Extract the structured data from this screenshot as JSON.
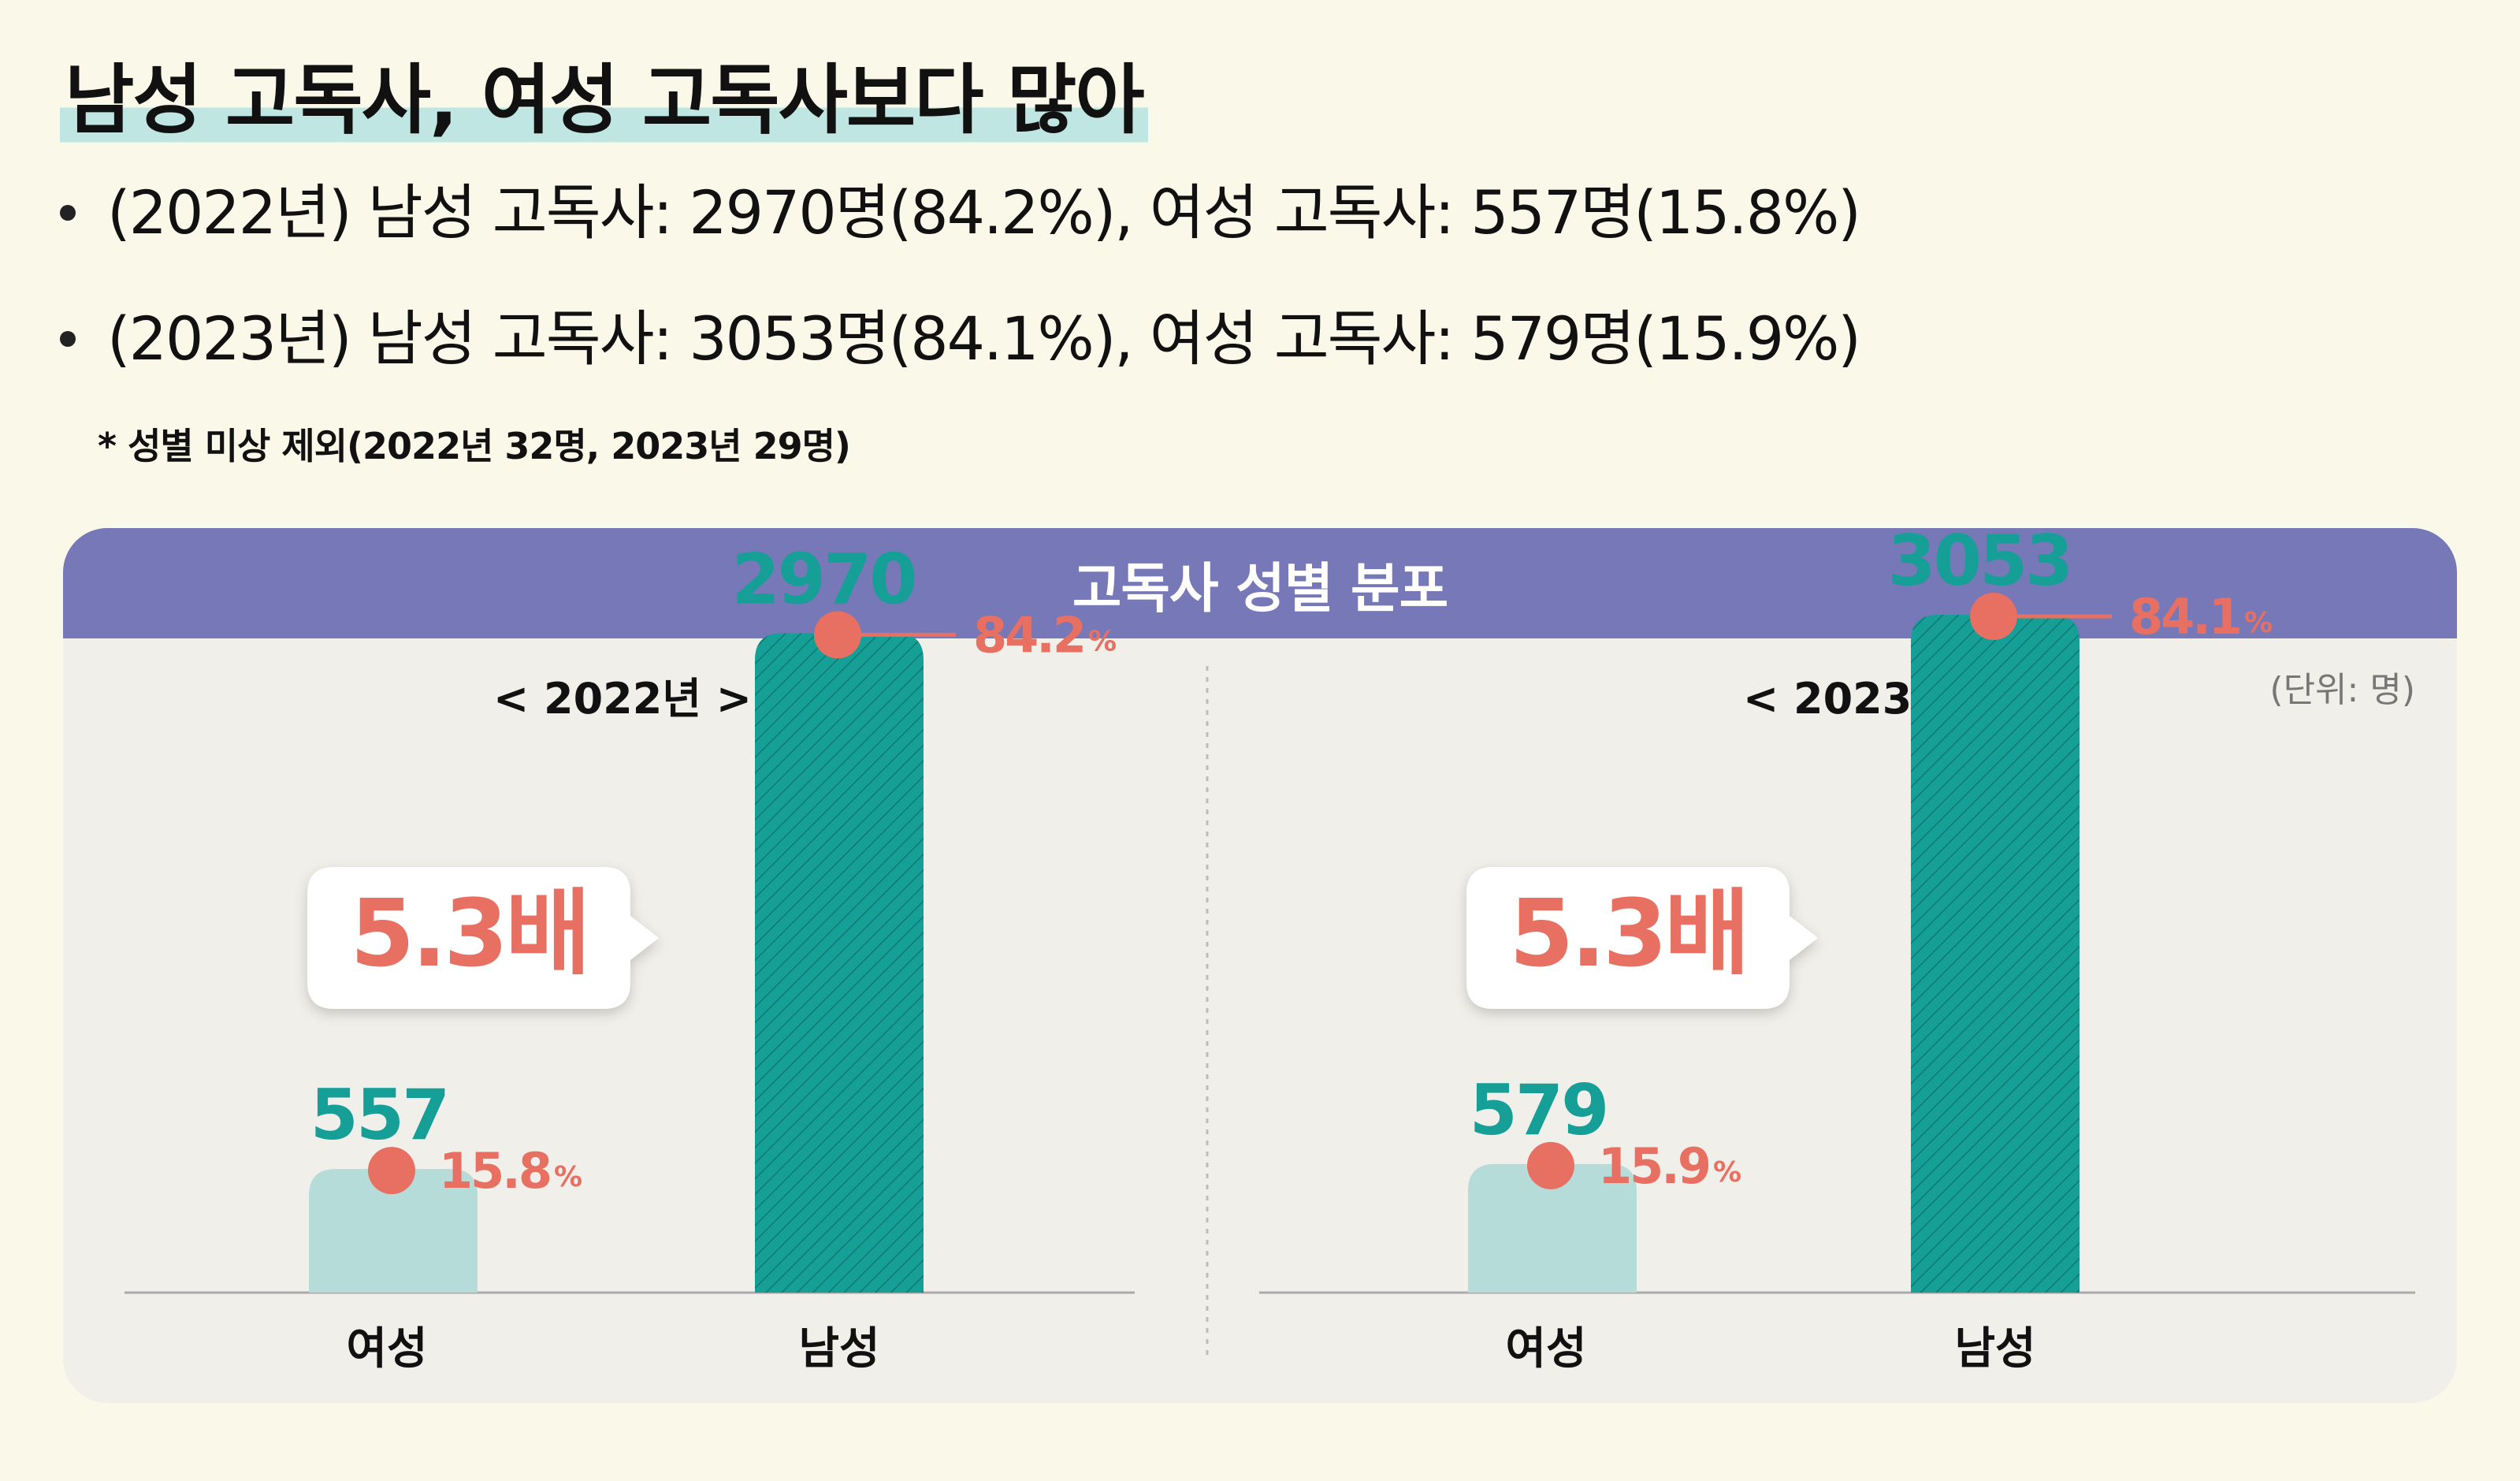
{
  "headline": "남성 고독사, 여성 고독사보다 많아",
  "bullets": [
    "(2022년) 남성 고독사: 2970명(84.2%), 여성 고독사: 557명(15.8%)",
    "(2023년) 남성 고독사: 3053명(84.1%), 여성 고독사: 579명(15.9%)"
  ],
  "note": "* 성별 미상 제외(2022년 32명, 2023년 29명)",
  "panel_title": "고독사 성별 분포",
  "unit": "(단위: 명)",
  "colors": {
    "male_bar": "#159f97",
    "female_bar": "#b6dcda",
    "value_text": "#159f97",
    "pct": "#e77062",
    "header_bg": "#7678b8"
  },
  "chart_data": [
    {
      "type": "bar",
      "title": "< 2022년 >",
      "categories": [
        "여성",
        "남성"
      ],
      "values": [
        557,
        2970
      ],
      "value_labels": [
        "557",
        "2970"
      ],
      "percents": [
        "15.8",
        "84.2"
      ],
      "percent_unit": "%",
      "ratio_label": "5.3배",
      "ylim": [
        0,
        3053
      ]
    },
    {
      "type": "bar",
      "title": "< 2023년 >",
      "categories": [
        "여성",
        "남성"
      ],
      "values": [
        579,
        3053
      ],
      "value_labels": [
        "579",
        "3053"
      ],
      "percents": [
        "15.9",
        "84.1"
      ],
      "percent_unit": "%",
      "ratio_label": "5.3배",
      "ylim": [
        0,
        3053
      ]
    }
  ]
}
